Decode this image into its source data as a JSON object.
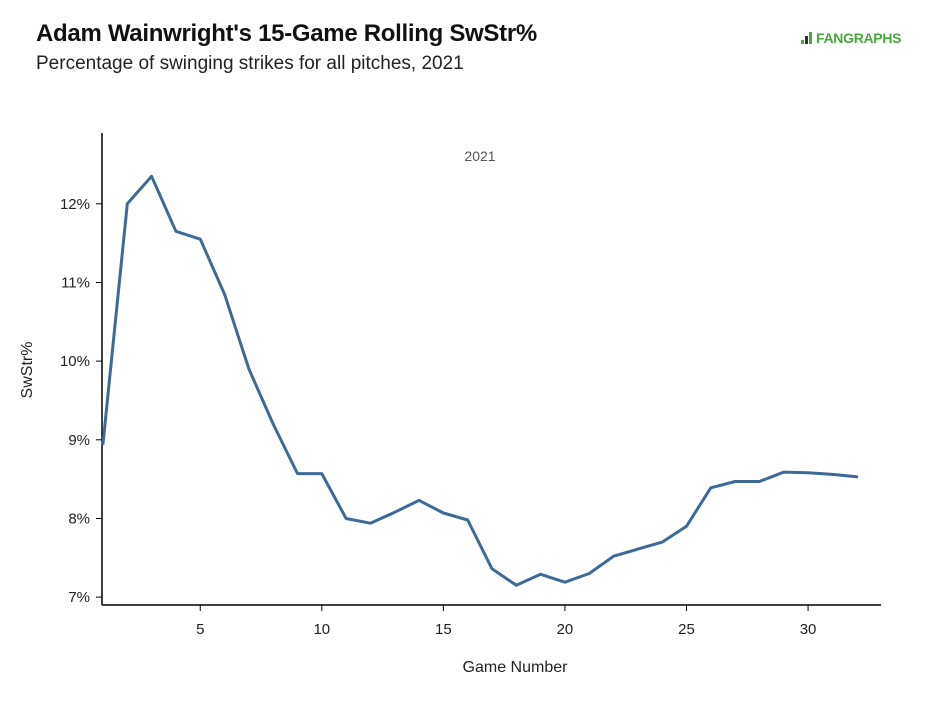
{
  "header": {
    "title": "Adam Wainwright's 15-Game Rolling SwStr%",
    "subtitle": "Percentage of swinging strikes for all pitches, 2021",
    "logo_text": "FANGRAPHS",
    "logo_icon": "fangraphs-logo-icon"
  },
  "chart_data": {
    "type": "line",
    "facet_label": "2021",
    "xlabel": "Game Number",
    "ylabel": "SwStr%",
    "xlim": [
      1,
      33
    ],
    "ylim": [
      6.9,
      12.9
    ],
    "x_ticks": [
      5,
      10,
      15,
      20,
      25,
      30
    ],
    "x_tick_labels": [
      "5",
      "10",
      "15",
      "20",
      "25",
      "30"
    ],
    "y_ticks": [
      7,
      8,
      9,
      10,
      11,
      12
    ],
    "y_tick_labels": [
      "7%",
      "8%",
      "9%",
      "10%",
      "11%",
      "12%"
    ],
    "grid": false,
    "line_color": "#3d6a99",
    "series": [
      {
        "x": [
          1,
          2,
          3,
          4,
          5,
          6,
          7,
          8,
          9,
          10,
          11,
          12,
          13,
          14,
          15,
          16,
          17,
          18,
          19,
          20,
          21,
          22,
          23,
          24,
          25,
          26,
          27,
          28,
          29,
          30,
          31,
          32
        ],
        "values": [
          8.95,
          12.0,
          12.35,
          11.65,
          11.55,
          10.85,
          9.9,
          9.2,
          8.57,
          8.57,
          8.0,
          7.94,
          8.08,
          8.23,
          8.07,
          7.98,
          7.36,
          7.15,
          7.29,
          7.19,
          7.3,
          7.52,
          7.61,
          7.7,
          7.9,
          8.39,
          8.47,
          8.47,
          8.59,
          8.58,
          8.56,
          8.53
        ]
      }
    ]
  }
}
